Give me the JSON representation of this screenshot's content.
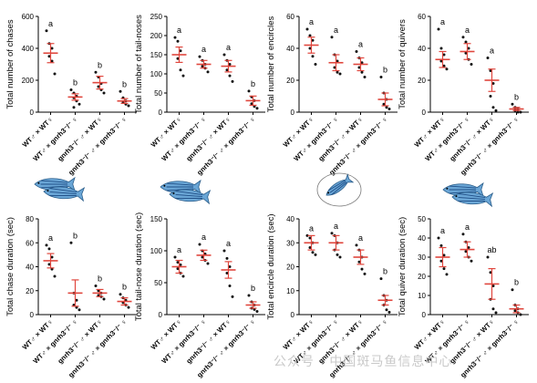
{
  "figure": {
    "colors": {
      "mean": "#e0463d",
      "sem": "#e0463d",
      "dots": "#111111",
      "axis": "#000000"
    },
    "fish_icons": [
      "fish-pair-chase",
      "fish-pair-tail-nose",
      "fish-pair-encircle",
      "fish-pair-quiver"
    ],
    "watermark": "公众号 · 中国斑马鱼信息中心"
  },
  "chart_data": [
    {
      "type": "scatter",
      "ylabel": "Total number of chases",
      "ylim": [
        0,
        600
      ],
      "yticks": [
        0,
        200,
        400,
        600
      ],
      "categories": [
        "WT♂ × WT♀",
        "WT♂ × gnrh3⁻/⁻ ♀",
        "gnrh3⁻/⁻ ♂ × WT♀",
        "gnrh3⁻/⁻ ♂ × gnrh3⁻/⁻ ♀"
      ],
      "mean": [
        370,
        95,
        185,
        70
      ],
      "sem": [
        60,
        20,
        40,
        15
      ],
      "points": [
        [
          510,
          430,
          400,
          350,
          320,
          240
        ],
        [
          140,
          120,
          100,
          90,
          70,
          50,
          30
        ],
        [
          250,
          220,
          180,
          160,
          140,
          120
        ],
        [
          130,
          90,
          70,
          60,
          50,
          40
        ]
      ],
      "letters": [
        "a",
        "b",
        "b",
        "b"
      ]
    },
    {
      "type": "scatter",
      "ylabel": "Total number of tail-noses",
      "ylim": [
        0,
        250
      ],
      "yticks": [
        0,
        50,
        100,
        150,
        200,
        250
      ],
      "categories": [
        "WT♂ × WT♀",
        "WT♂ × gnrh3⁻/⁻ ♀",
        "gnrh3⁻/⁻ ♂ × WT♀",
        "gnrh3⁻/⁻ ♂ × gnrh3⁻/⁻ ♀"
      ],
      "mean": [
        150,
        125,
        120,
        30
      ],
      "sem": [
        20,
        10,
        15,
        12
      ],
      "points": [
        [
          195,
          185,
          160,
          140,
          110,
          95
        ],
        [
          145,
          135,
          125,
          120,
          115,
          105
        ],
        [
          150,
          135,
          125,
          110,
          95,
          80
        ],
        [
          55,
          40,
          30,
          22,
          15,
          10
        ]
      ],
      "letters": [
        "a",
        "a",
        "a",
        "b"
      ]
    },
    {
      "type": "scatter",
      "ylabel": "Total number of encircles",
      "ylim": [
        0,
        60
      ],
      "yticks": [
        0,
        20,
        40,
        60
      ],
      "categories": [
        "WT♂ × WT♀",
        "WT♂ × gnrh3⁻/⁻ ♀",
        "gnrh3⁻/⁻ ♂ × WT♀",
        "gnrh3⁻/⁻ ♂ × gnrh3⁻/⁻ ♀"
      ],
      "mean": [
        42,
        31,
        30,
        8
      ],
      "sem": [
        5,
        5,
        4,
        4
      ],
      "points": [
        [
          52,
          48,
          45,
          40,
          35,
          30
        ],
        [
          47,
          36,
          32,
          28,
          25,
          24
        ],
        [
          38,
          34,
          31,
          28,
          25,
          22
        ],
        [
          22,
          12,
          8,
          5,
          3,
          2
        ]
      ],
      "letters": [
        "a",
        "a",
        "a",
        "b"
      ]
    },
    {
      "type": "scatter",
      "ylabel": "Total number of quivers",
      "ylim": [
        0,
        60
      ],
      "yticks": [
        0,
        20,
        40,
        60
      ],
      "categories": [
        "WT♂ × WT♀",
        "WT♂ × gnrh3⁻/⁻ ♀",
        "gnrh3⁻/⁻ ♂ × WT♀",
        "gnrh3⁻/⁻ ♂ × gnrh3⁻/⁻ ♀"
      ],
      "mean": [
        33,
        38,
        20,
        2
      ],
      "sem": [
        5,
        5,
        7,
        1
      ],
      "points": [
        [
          52,
          40,
          36,
          32,
          29,
          27
        ],
        [
          47,
          44,
          40,
          37,
          33,
          30
        ],
        [
          34,
          26,
          18,
          10,
          3,
          1
        ],
        [
          5,
          3,
          2,
          1,
          0,
          0
        ]
      ],
      "letters": [
        "a",
        "a",
        "a",
        "b"
      ]
    },
    {
      "type": "scatter",
      "ylabel": "Total chase duration (sec)",
      "ylim": [
        0,
        80
      ],
      "yticks": [
        0,
        20,
        40,
        60,
        80
      ],
      "categories": [
        "WT♂ × WT♀",
        "WT♂ × gnrh3⁻/⁻ ♀",
        "gnrh3⁻/⁻ ♂ × WT♀",
        "gnrh3⁻/⁻ ♂ × gnrh3⁻/⁻ ♀"
      ],
      "mean": [
        45,
        18,
        18,
        11
      ],
      "sem": [
        6,
        11,
        3,
        3
      ],
      "points": [
        [
          58,
          55,
          48,
          42,
          38,
          32
        ],
        [
          60,
          18,
          12,
          8,
          6,
          4
        ],
        [
          24,
          20,
          18,
          16,
          15,
          13
        ],
        [
          17,
          14,
          12,
          10,
          8,
          6
        ]
      ],
      "letters": [
        "a",
        "b",
        "b",
        "b"
      ]
    },
    {
      "type": "scatter",
      "ylabel": "Total tail-nose duration (sec)",
      "ylim": [
        0,
        150
      ],
      "yticks": [
        0,
        50,
        100,
        150
      ],
      "categories": [
        "WT♂ × WT♀",
        "WT♂ × gnrh3⁻/⁻ ♀",
        "gnrh3⁻/⁻ ♂ × WT♀",
        "gnrh3⁻/⁻ ♂ × gnrh3⁻/⁻ ♀"
      ],
      "mean": [
        75,
        93,
        70,
        15
      ],
      "sem": [
        10,
        8,
        13,
        5
      ],
      "points": [
        [
          90,
          82,
          78,
          72,
          65,
          60
        ],
        [
          110,
          100,
          95,
          90,
          85,
          80
        ],
        [
          100,
          88,
          75,
          65,
          45,
          28
        ],
        [
          30,
          20,
          15,
          10,
          8,
          5
        ]
      ],
      "letters": [
        "a",
        "a",
        "a",
        "b"
      ]
    },
    {
      "type": "scatter",
      "ylabel": "Total encircle duration (sec)",
      "ylim": [
        0,
        40
      ],
      "yticks": [
        0,
        10,
        20,
        30,
        40
      ],
      "categories": [
        "WT♂ × WT♀",
        "WT♂ × gnrh3⁻/⁻ ♀",
        "gnrh3⁻/⁻ ♂ × WT♀",
        "gnrh3⁻/⁻ ♂ × gnrh3⁻/⁻ ♀"
      ],
      "mean": [
        30,
        30,
        24,
        6
      ],
      "sem": [
        3,
        3,
        3,
        2
      ],
      "points": [
        [
          33,
          32,
          30,
          28,
          26,
          25
        ],
        [
          34,
          33,
          30,
          27,
          25,
          24
        ],
        [
          29,
          27,
          24,
          22,
          19,
          17
        ],
        [
          15,
          8,
          6,
          4,
          2,
          1
        ]
      ],
      "letters": [
        "a",
        "a",
        "a",
        "b"
      ]
    },
    {
      "type": "scatter",
      "ylabel": "Total quiver duration (sec)",
      "ylim": [
        0,
        50
      ],
      "yticks": [
        0,
        10,
        20,
        30,
        40,
        50
      ],
      "categories": [
        "WT♂ × WT♀",
        "WT♂ × gnrh3⁻/⁻ ♀",
        "gnrh3⁻/⁻ ♂ × WT♀",
        "gnrh3⁻/⁻ ♂ × gnrh3⁻/⁻ ♀"
      ],
      "mean": [
        30,
        34,
        16,
        3
      ],
      "sem": [
        5,
        4,
        8,
        2
      ],
      "points": [
        [
          40,
          36,
          31,
          28,
          24,
          21
        ],
        [
          42,
          38,
          35,
          33,
          30,
          28
        ],
        [
          30,
          22,
          15,
          8,
          3,
          1
        ],
        [
          13,
          5,
          3,
          2,
          1,
          0
        ]
      ],
      "letters": [
        "a",
        "a",
        "ab",
        "b"
      ]
    }
  ]
}
